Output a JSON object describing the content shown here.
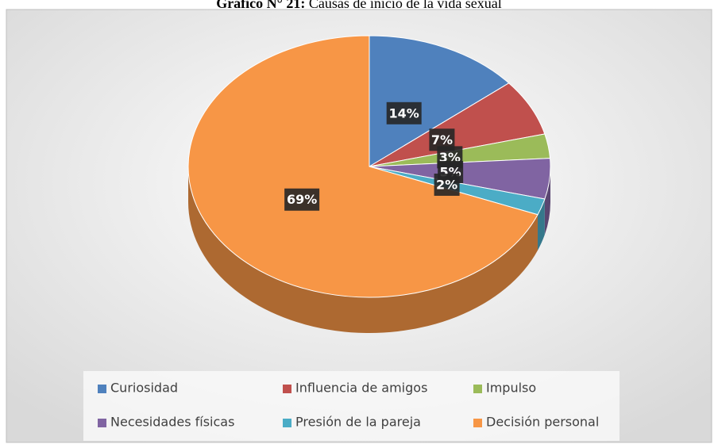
{
  "chart_data": {
    "type": "pie3d",
    "title_label": "Gráfico N° 21:",
    "title": "Causas de inicio de la vida sexual",
    "categories": [
      "Curiosidad",
      "Influencia de amigos",
      "Impulso",
      "Necesidades físicas",
      "Presión de la pareja",
      "Decisión personal"
    ],
    "values": [
      14,
      7,
      3,
      5,
      2,
      69
    ],
    "value_labels": [
      "14%",
      "7%",
      "3%",
      "5%",
      "2%",
      "69%"
    ],
    "colors": [
      "#4f81bd",
      "#c0504d",
      "#9bbb59",
      "#8064a2",
      "#4bacc6",
      "#f79646"
    ],
    "legend": "bottom"
  }
}
